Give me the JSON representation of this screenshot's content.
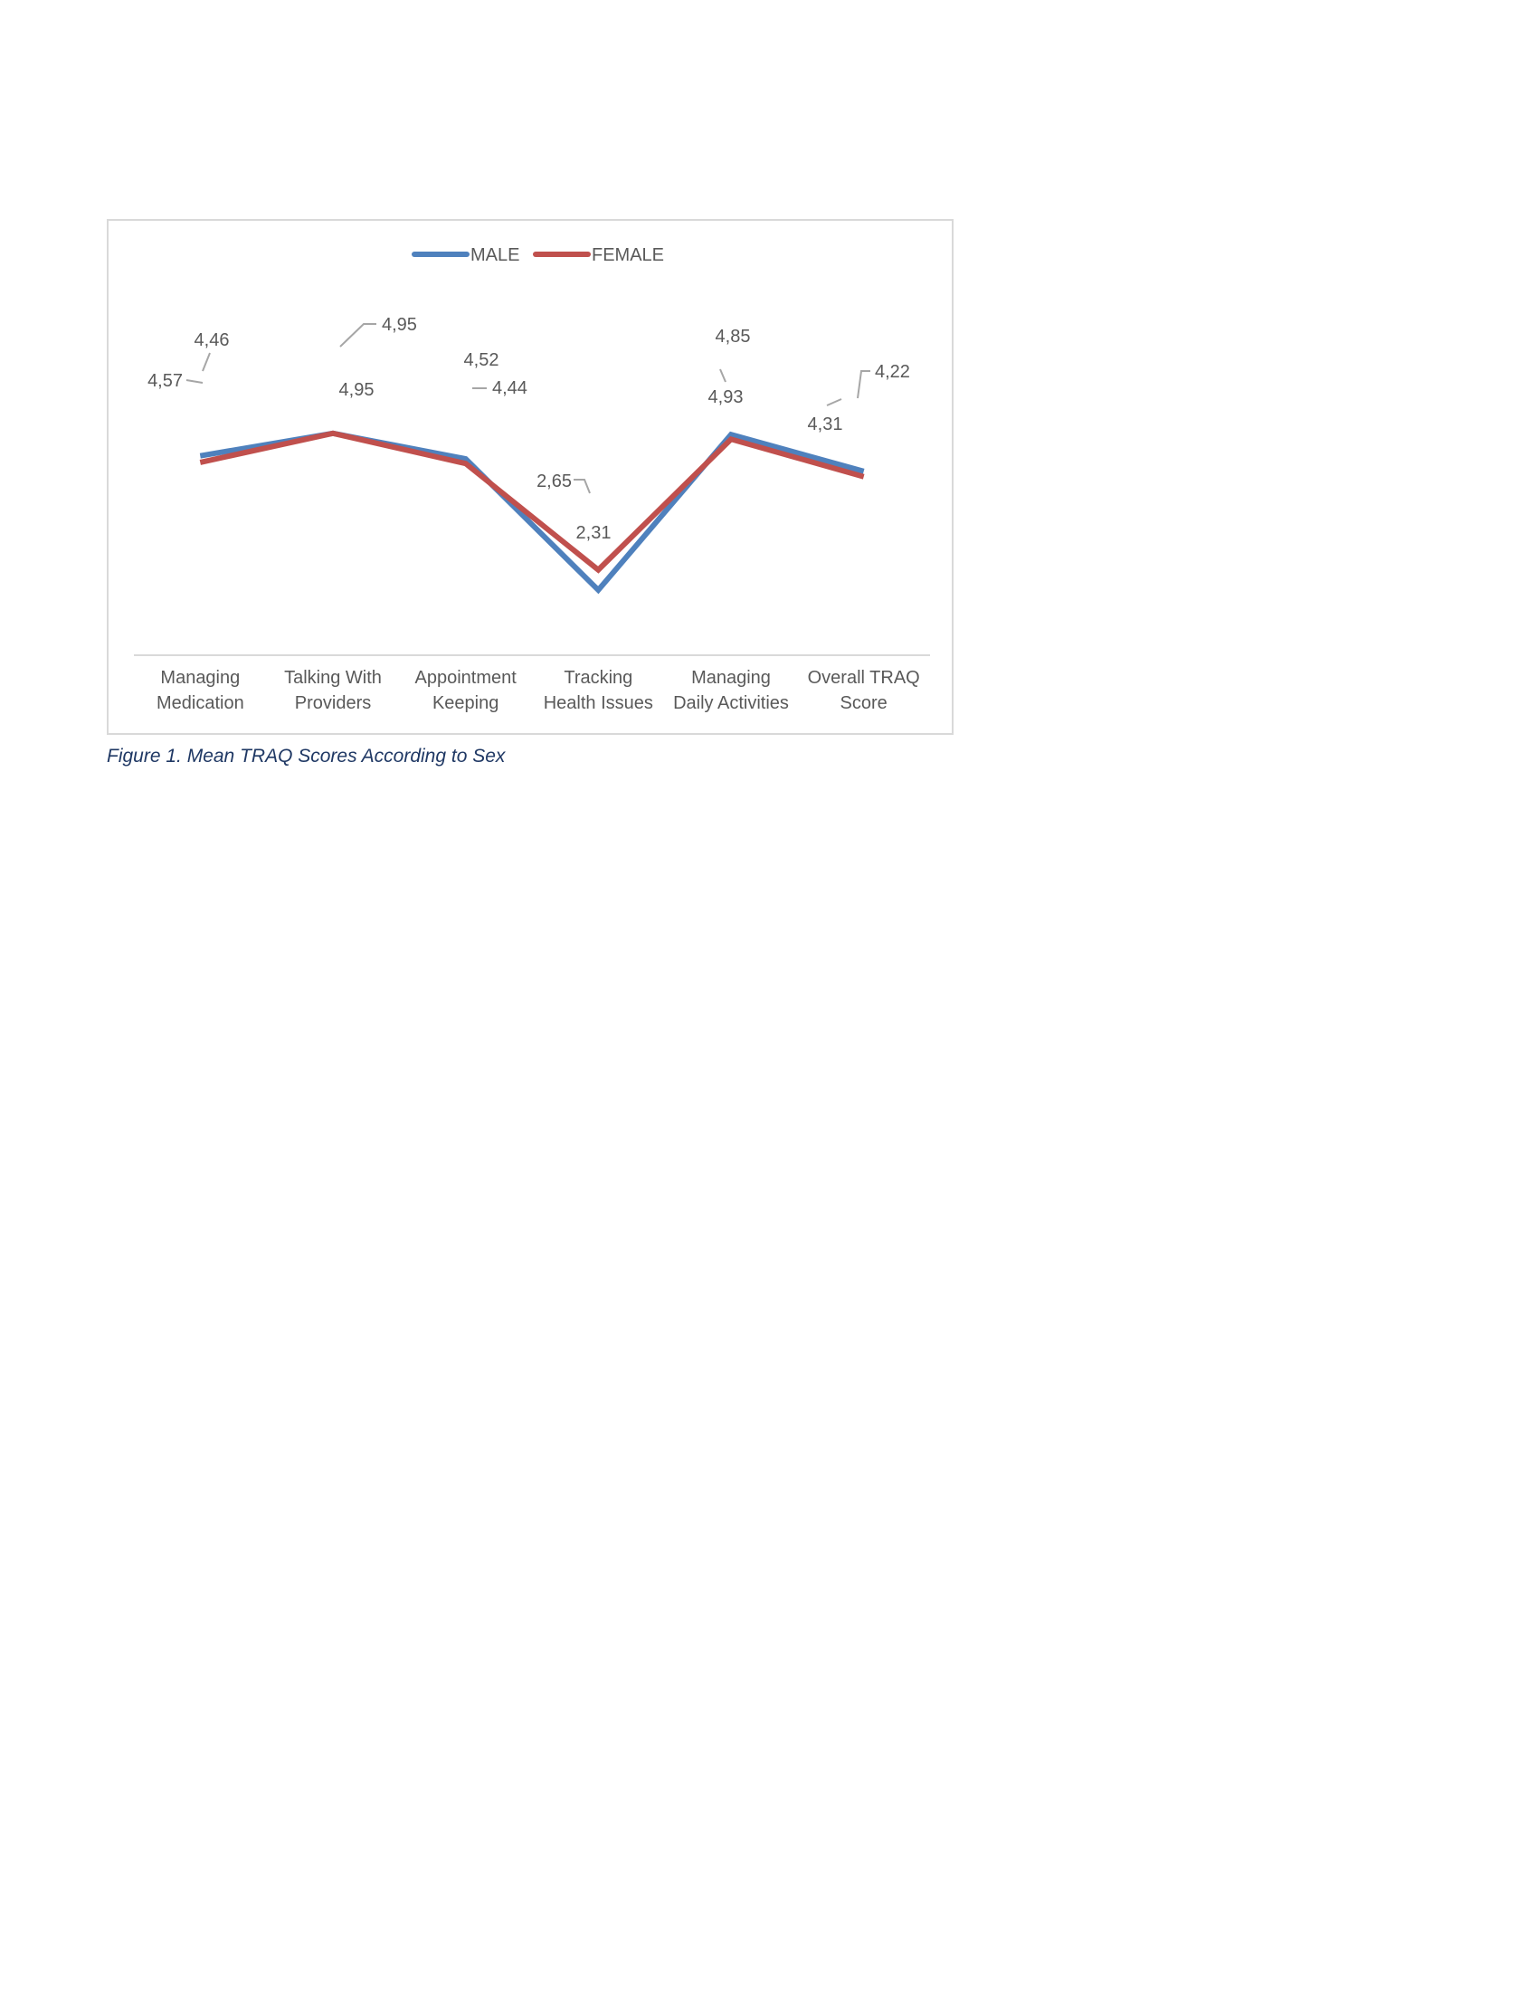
{
  "caption": "Figure 1. Mean TRAQ Scores According to Sex",
  "chart_data": {
    "type": "line",
    "title": "",
    "xlabel": "",
    "ylabel": "",
    "categories": [
      [
        "Managing",
        "Medication"
      ],
      [
        "Talking With",
        "Providers"
      ],
      [
        "Appointment",
        "Keeping"
      ],
      [
        "Tracking",
        "Health Issues"
      ],
      [
        "Managing",
        "Daily Activities"
      ],
      [
        "Overall TRAQ",
        "Score"
      ]
    ],
    "series": [
      {
        "name": "MALE",
        "color": "#4f81bd",
        "values": [
          4.57,
          4.95,
          4.52,
          2.31,
          4.93,
          4.31
        ],
        "labels": [
          "4,57",
          "4,95",
          "4,52",
          "2,31",
          "4,93",
          "4,31"
        ]
      },
      {
        "name": "FEMALE",
        "color": "#c0504d",
        "values": [
          4.46,
          4.95,
          4.44,
          2.65,
          4.85,
          4.22
        ],
        "labels": [
          "4,46",
          "4,95",
          "4,44",
          "2,65",
          "4,85",
          "4,22"
        ]
      }
    ],
    "legend_position": "top-center",
    "grid": false,
    "label_color": "#595959",
    "leader_line_color": "#a6a6a6",
    "axis_line_color": "#d9d9d9"
  }
}
